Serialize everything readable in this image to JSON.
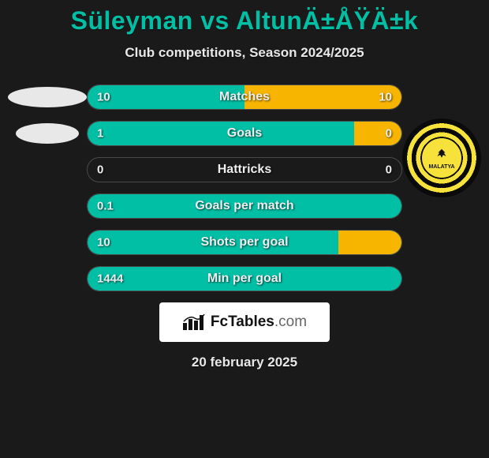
{
  "title": "Süleyman vs AltunÄ±ÅŸÄ±k",
  "subtitle": "Club competitions, Season 2024/2025",
  "date": "20 february 2025",
  "ellipse_color": "#e8e8e8",
  "logo_text_main": "FcTables",
  "logo_text_tld": ".com",
  "colors": {
    "left_fill": "#00bfa5",
    "right_fill": "#f7b500",
    "bar_border": "#4a4a4a",
    "bg": "#1a1a1a"
  },
  "stats": [
    {
      "label": "Matches",
      "left_val": "10",
      "right_val": "10",
      "left_pct": 50,
      "right_pct": 50
    },
    {
      "label": "Goals",
      "left_val": "1",
      "right_val": "0",
      "left_pct": 100,
      "right_pct": 15
    },
    {
      "label": "Hattricks",
      "left_val": "0",
      "right_val": "0",
      "left_pct": 0,
      "right_pct": 0
    },
    {
      "label": "Goals per match",
      "left_val": "0.1",
      "right_val": "",
      "left_pct": 100,
      "right_pct": 0
    },
    {
      "label": "Shots per goal",
      "left_val": "10",
      "right_val": "",
      "left_pct": 100,
      "right_pct": 20
    },
    {
      "label": "Min per goal",
      "left_val": "1444",
      "right_val": "",
      "left_pct": 100,
      "right_pct": 0
    }
  ]
}
